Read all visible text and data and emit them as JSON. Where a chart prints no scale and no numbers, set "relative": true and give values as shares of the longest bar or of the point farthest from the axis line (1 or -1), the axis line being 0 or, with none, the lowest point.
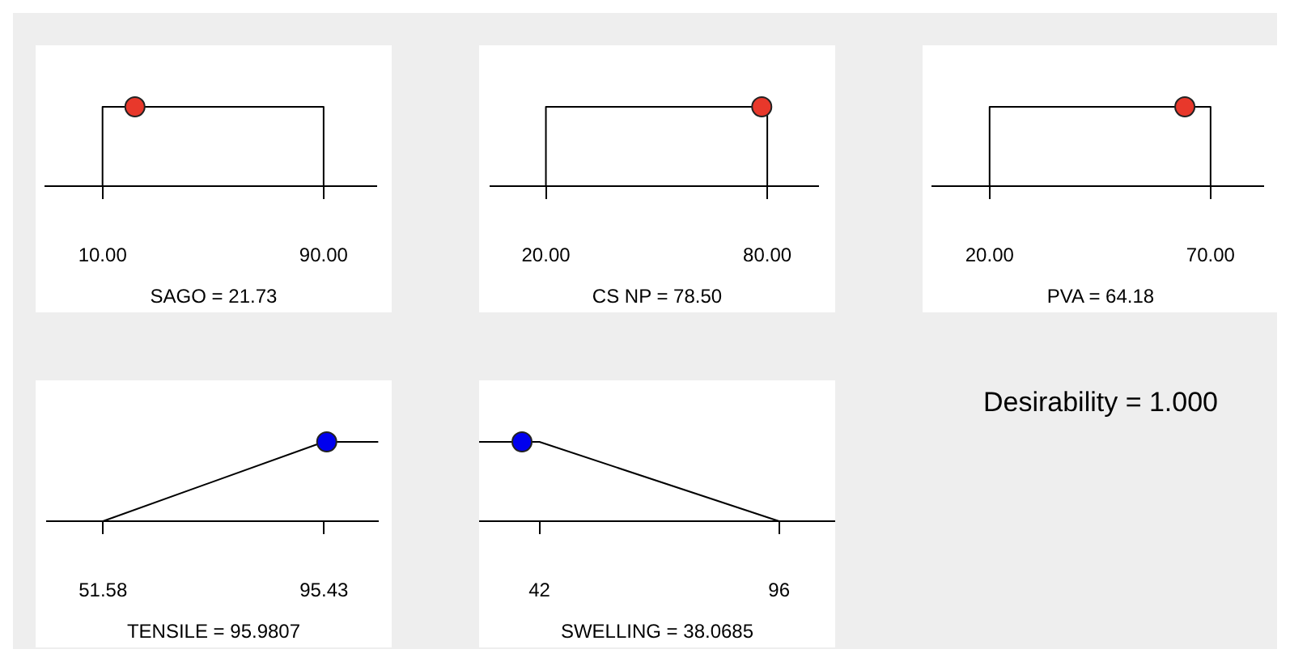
{
  "chart_data": [
    {
      "type": "line",
      "xlabel": "SAGO = 21.73",
      "relative": true,
      "tick_labels": "x",
      "grid": false,
      "xlim": [
        -10.7,
        109
      ],
      "xticks": [
        {
          "value": 10,
          "label": "10.00"
        },
        {
          "value": 90,
          "label": "90.00"
        }
      ],
      "series": [
        {
          "type": "line",
          "color": "#000000",
          "marker": "none",
          "x": [
            -10.7,
            10,
            10,
            90,
            90,
            109
          ],
          "values": [
            0,
            0,
            1,
            1,
            0,
            0
          ]
        },
        {
          "type": "scatter",
          "color": "#e8382b",
          "marker": "circle",
          "x": [
            21.73
          ],
          "values": [
            1
          ]
        }
      ]
    },
    {
      "type": "line",
      "xlabel": "CS NP = 78.50",
      "relative": true,
      "tick_labels": "x",
      "grid": false,
      "xlim": [
        4.9,
        93.9
      ],
      "xticks": [
        {
          "value": 20,
          "label": "20.00"
        },
        {
          "value": 80,
          "label": "80.00"
        }
      ],
      "series": [
        {
          "type": "line",
          "color": "#000000",
          "marker": "none",
          "x": [
            4.9,
            20,
            20,
            80,
            80,
            93.9
          ],
          "values": [
            0,
            0,
            1,
            1,
            0,
            0
          ]
        },
        {
          "type": "scatter",
          "color": "#e8382b",
          "marker": "circle",
          "x": [
            78.5
          ],
          "values": [
            1
          ]
        }
      ]
    },
    {
      "type": "line",
      "xlabel": "PVA = 64.18",
      "relative": true,
      "tick_labels": "x",
      "grid": false,
      "xlim": [
        7,
        82
      ],
      "xticks": [
        {
          "value": 20,
          "label": "20.00"
        },
        {
          "value": 70,
          "label": "70.00"
        }
      ],
      "series": [
        {
          "type": "line",
          "color": "#000000",
          "marker": "none",
          "x": [
            7,
            20,
            20,
            70,
            70,
            82
          ],
          "values": [
            0,
            0,
            1,
            1,
            0,
            0
          ]
        },
        {
          "type": "scatter",
          "color": "#e8382b",
          "marker": "circle",
          "x": [
            64.18
          ],
          "values": [
            1
          ]
        }
      ]
    },
    {
      "type": "line",
      "xlabel": "TENSILE = 95.9807",
      "relative": true,
      "tick_labels": "x",
      "grid": false,
      "xlim": [
        40.5,
        106.2
      ],
      "xticks": [
        51.58,
        95.43
      ],
      "series": [
        {
          "type": "line",
          "color": "#000000",
          "marker": "none",
          "x": [
            40.5,
            51.58,
            95.43,
            106.2
          ],
          "values": [
            0,
            0,
            1,
            1
          ]
        },
        {
          "type": "scatter",
          "color": "#0000ee",
          "marker": "circle",
          "x": [
            95.9807
          ],
          "values": [
            1
          ]
        }
      ]
    },
    {
      "type": "line",
      "xlabel": "SWELLING = 38.0685",
      "relative": true,
      "tick_labels": "x",
      "grid": false,
      "xlim": [
        28.4,
        108.5
      ],
      "xticks": [
        42,
        96
      ],
      "series": [
        {
          "type": "line",
          "color": "#000000",
          "marker": "none",
          "x": [
            28.4,
            42,
            96,
            108.5
          ],
          "values": [
            1,
            1,
            0,
            0
          ]
        },
        {
          "type": "scatter",
          "color": "#0000ee",
          "marker": "circle",
          "x": [
            38.0685
          ],
          "values": [
            1
          ]
        }
      ]
    },
    {
      "type": "other",
      "title": "Desirability = 1.000"
    }
  ]
}
